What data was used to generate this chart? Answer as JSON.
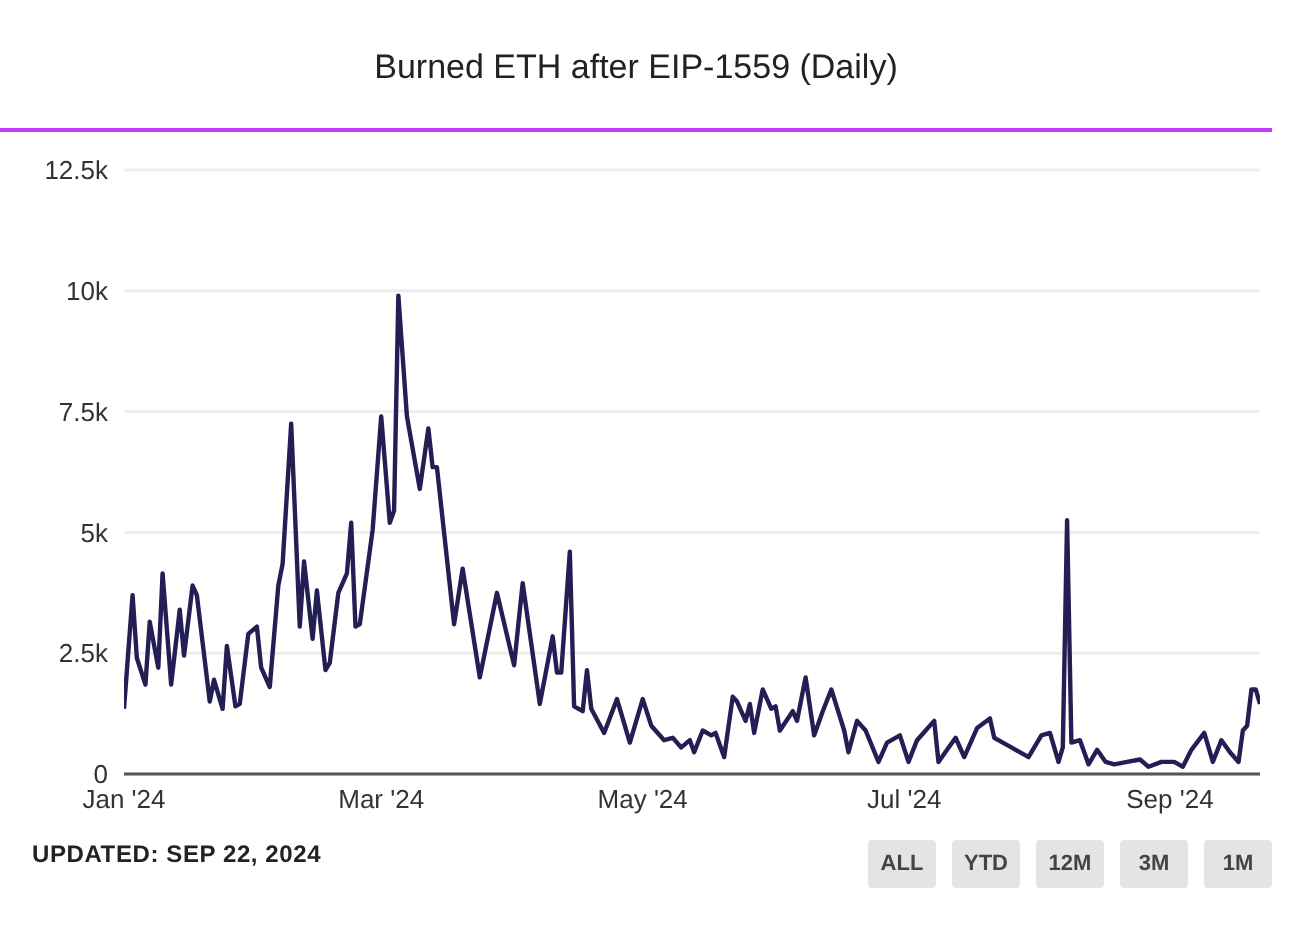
{
  "chart_data": {
    "type": "line",
    "title": "Burned ETH after EIP-1559 (Daily)",
    "annotations": [
      "UPDATED: SEP 22, 2024",
      "ALL",
      "YTD",
      "12M",
      "3M",
      "1M"
    ],
    "x": [
      "2024-01-01",
      "2024-01-03",
      "2024-01-04",
      "2024-01-06",
      "2024-01-07",
      "2024-01-09",
      "2024-01-10",
      "2024-01-12",
      "2024-01-14",
      "2024-01-15",
      "2024-01-17",
      "2024-01-18",
      "2024-01-21",
      "2024-01-22",
      "2024-01-24",
      "2024-01-25",
      "2024-01-27",
      "2024-01-28",
      "2024-01-30",
      "2024-02-01",
      "2024-02-02",
      "2024-02-04",
      "2024-02-06",
      "2024-02-07",
      "2024-02-09",
      "2024-02-11",
      "2024-02-12",
      "2024-02-14",
      "2024-02-15",
      "2024-02-17",
      "2024-02-18",
      "2024-02-20",
      "2024-02-22",
      "2024-02-23",
      "2024-02-24",
      "2024-02-25",
      "2024-02-28",
      "2024-03-01",
      "2024-03-03",
      "2024-03-04",
      "2024-03-05",
      "2024-03-07",
      "2024-03-10",
      "2024-03-12",
      "2024-03-13",
      "2024-03-14",
      "2024-03-18",
      "2024-03-20",
      "2024-03-24",
      "2024-03-28",
      "2024-04-01",
      "2024-04-03",
      "2024-04-07",
      "2024-04-10",
      "2024-04-11",
      "2024-04-12",
      "2024-04-14",
      "2024-04-15",
      "2024-04-17",
      "2024-04-18",
      "2024-04-19",
      "2024-04-22",
      "2024-04-25",
      "2024-04-28",
      "2024-05-01",
      "2024-05-03",
      "2024-05-06",
      "2024-05-08",
      "2024-05-10",
      "2024-05-12",
      "2024-05-13",
      "2024-05-15",
      "2024-05-17",
      "2024-05-18",
      "2024-05-20",
      "2024-05-22",
      "2024-05-23",
      "2024-05-25",
      "2024-05-26",
      "2024-05-27",
      "2024-05-29",
      "2024-05-31",
      "2024-06-01",
      "2024-06-02",
      "2024-06-05",
      "2024-06-06",
      "2024-06-08",
      "2024-06-10",
      "2024-06-12",
      "2024-06-14",
      "2024-06-17",
      "2024-06-18",
      "2024-06-20",
      "2024-06-22",
      "2024-06-25",
      "2024-06-27",
      "2024-06-30",
      "2024-07-02",
      "2024-07-04",
      "2024-07-06",
      "2024-07-08",
      "2024-07-09",
      "2024-07-11",
      "2024-07-13",
      "2024-07-15",
      "2024-07-18",
      "2024-07-21",
      "2024-07-22",
      "2024-07-24",
      "2024-07-26",
      "2024-07-30",
      "2024-08-02",
      "2024-08-04",
      "2024-08-06",
      "2024-08-07",
      "2024-08-08",
      "2024-08-09",
      "2024-08-11",
      "2024-08-13",
      "2024-08-15",
      "2024-08-17",
      "2024-08-19",
      "2024-08-22",
      "2024-08-25",
      "2024-08-27",
      "2024-08-30",
      "2024-09-02",
      "2024-09-04",
      "2024-09-06",
      "2024-09-09",
      "2024-09-11",
      "2024-09-13",
      "2024-09-15",
      "2024-09-17",
      "2024-09-18",
      "2024-09-19",
      "2024-09-20",
      "2024-09-21",
      "2024-09-22"
    ],
    "series": [
      {
        "color": "#231f54",
        "values": [
          1350,
          3700,
          2400,
          1850,
          3150,
          2200,
          4150,
          1850,
          3400,
          2450,
          3900,
          3700,
          1500,
          1950,
          1350,
          2650,
          1400,
          1450,
          2900,
          3050,
          2200,
          1800,
          3900,
          4350,
          7250,
          3050,
          4400,
          2800,
          3800,
          2150,
          2300,
          3750,
          4150,
          5200,
          3050,
          3100,
          5050,
          7400,
          5200,
          5450,
          9900,
          7400,
          5900,
          7150,
          6350,
          6350,
          3100,
          4250,
          2000,
          3750,
          2250,
          3950,
          1450,
          2850,
          2100,
          2100,
          4600,
          1400,
          1300,
          2150,
          1350,
          850,
          1550,
          650,
          1550,
          1000,
          700,
          750,
          550,
          700,
          450,
          900,
          800,
          850,
          350,
          1600,
          1500,
          1100,
          1450,
          850,
          1750,
          1350,
          1400,
          900,
          1300,
          1100,
          2000,
          800,
          1300,
          1750,
          900,
          450,
          1100,
          900,
          250,
          650,
          800,
          250,
          700,
          900,
          1100,
          250,
          500,
          750,
          350,
          950,
          1150,
          750,
          650,
          550,
          350,
          800,
          850,
          250,
          550,
          5250,
          650,
          700,
          200,
          500,
          250,
          200,
          250,
          300,
          150,
          250,
          250,
          150,
          500,
          850,
          250,
          700,
          450,
          250,
          900,
          1000,
          1750,
          1750,
          1450
        ]
      }
    ],
    "xlim": [
      "2024-01-01",
      "2024-09-22"
    ],
    "xticks": [
      {
        "value": "2024-01-01",
        "label": "Jan '24"
      },
      {
        "value": "2024-03-01",
        "label": "Mar '24"
      },
      {
        "value": "2024-05-01",
        "label": "May '24"
      },
      {
        "value": "2024-07-01",
        "label": "Jul '24"
      },
      {
        "value": "2024-09-01",
        "label": "Sep '24"
      }
    ],
    "ylim": [
      0,
      12500
    ],
    "yticks": [
      0,
      {
        "value": 2500,
        "label": "2.5k"
      },
      {
        "value": 5000,
        "label": "5k"
      },
      {
        "value": 7500,
        "label": "7.5k"
      },
      {
        "value": 10000,
        "label": "10k"
      },
      {
        "value": 12500,
        "label": "12.5k"
      }
    ],
    "grid": "y",
    "legend": false,
    "marker": "none",
    "line_style": "solid"
  }
}
